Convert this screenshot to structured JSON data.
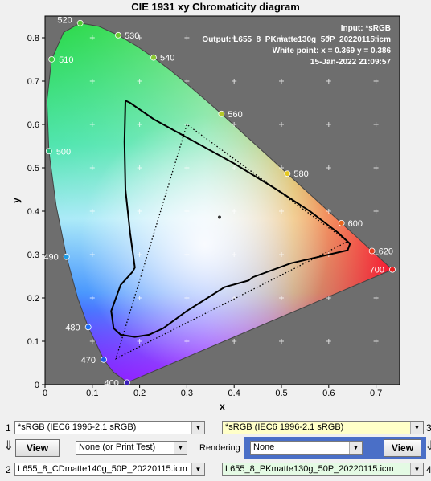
{
  "window": {
    "title": "CIE 1931 xy Chromaticity diagram"
  },
  "chart_data": {
    "type": "scatter",
    "title": "CIE 1931 xy Chromaticity diagram",
    "xlabel": "x",
    "ylabel": "y",
    "xlim": [
      0,
      0.75
    ],
    "ylim": [
      0,
      0.85
    ],
    "xticks": [
      "0",
      "0.1",
      "0.2",
      "0.3",
      "0.4",
      "0.5",
      "0.6",
      "0.7"
    ],
    "yticks": [
      "0",
      "0.1",
      "0.2",
      "0.3",
      "0.4",
      "0.5",
      "0.6",
      "0.7",
      "0.8"
    ],
    "grid": true,
    "annotations": [
      "Input:  *sRGB",
      "Output: L655_8_PKmatte130g_50P_20220115.icm",
      "White point:  x = 0.369  y = 0.386",
      "15-Jan-2022 21:09:57"
    ],
    "spectral_locus": [
      [
        0.1741,
        0.005
      ],
      [
        0.144,
        0.0297
      ],
      [
        0.1241,
        0.0578
      ],
      [
        0.0913,
        0.1327
      ],
      [
        0.0687,
        0.2007
      ],
      [
        0.0454,
        0.295
      ],
      [
        0.0235,
        0.4127
      ],
      [
        0.0082,
        0.5384
      ],
      [
        0.0039,
        0.6548
      ],
      [
        0.0139,
        0.7502
      ],
      [
        0.0389,
        0.812
      ],
      [
        0.0743,
        0.8338
      ],
      [
        0.1142,
        0.8262
      ],
      [
        0.1547,
        0.8059
      ],
      [
        0.1929,
        0.7816
      ],
      [
        0.2296,
        0.7543
      ],
      [
        0.2658,
        0.7243
      ],
      [
        0.3016,
        0.6923
      ],
      [
        0.3373,
        0.6589
      ],
      [
        0.3731,
        0.6245
      ],
      [
        0.4087,
        0.5896
      ],
      [
        0.4441,
        0.5547
      ],
      [
        0.4788,
        0.5202
      ],
      [
        0.5125,
        0.4866
      ],
      [
        0.5448,
        0.4544
      ],
      [
        0.5752,
        0.4242
      ],
      [
        0.6029,
        0.3965
      ],
      [
        0.627,
        0.3725
      ],
      [
        0.6482,
        0.3514
      ],
      [
        0.6658,
        0.334
      ],
      [
        0.6915,
        0.3083
      ],
      [
        0.714,
        0.2859
      ],
      [
        0.7347,
        0.2653
      ]
    ],
    "wavelength_labels": [
      {
        "nm": "400",
        "x": 0.1733,
        "y": 0.0048,
        "color": "#3a1eb8"
      },
      {
        "nm": "470",
        "x": 0.1241,
        "y": 0.0578,
        "color": "#1e5be6"
      },
      {
        "nm": "480",
        "x": 0.0913,
        "y": 0.1327,
        "color": "#1e6ff0"
      },
      {
        "nm": "490",
        "x": 0.0454,
        "y": 0.295,
        "color": "#1e9be6"
      },
      {
        "nm": "500",
        "x": 0.0082,
        "y": 0.5384,
        "color": "#28b478"
      },
      {
        "nm": "510",
        "x": 0.0139,
        "y": 0.7502,
        "color": "#3cc83c"
      },
      {
        "nm": "520",
        "x": 0.0743,
        "y": 0.8338,
        "color": "#50c832"
      },
      {
        "nm": "530",
        "x": 0.1547,
        "y": 0.8059,
        "color": "#6ec832"
      },
      {
        "nm": "540",
        "x": 0.2296,
        "y": 0.7543,
        "color": "#8cc832"
      },
      {
        "nm": "560",
        "x": 0.3731,
        "y": 0.6245,
        "color": "#b4c828"
      },
      {
        "nm": "580",
        "x": 0.5125,
        "y": 0.4866,
        "color": "#e6c81e"
      },
      {
        "nm": "600",
        "x": 0.627,
        "y": 0.3725,
        "color": "#e6641e"
      },
      {
        "nm": "620",
        "x": 0.6915,
        "y": 0.3083,
        "color": "#e63c1e"
      },
      {
        "nm": "700",
        "x": 0.7347,
        "y": 0.2653,
        "color": "#e61e1e"
      }
    ],
    "series": [
      {
        "name": "L655_8_PKmatte130g_50P_20220115.icm",
        "style": "solid",
        "points": [
          [
            0.17,
            0.655
          ],
          [
            0.18,
            0.65
          ],
          [
            0.23,
            0.612
          ],
          [
            0.3,
            0.57
          ],
          [
            0.4,
            0.51
          ],
          [
            0.49,
            0.45
          ],
          [
            0.56,
            0.4
          ],
          [
            0.62,
            0.35
          ],
          [
            0.645,
            0.325
          ],
          [
            0.64,
            0.31
          ],
          [
            0.6,
            0.3
          ],
          [
            0.52,
            0.28
          ],
          [
            0.44,
            0.248
          ],
          [
            0.43,
            0.24
          ],
          [
            0.38,
            0.225
          ],
          [
            0.3,
            0.17
          ],
          [
            0.25,
            0.13
          ],
          [
            0.22,
            0.115
          ],
          [
            0.19,
            0.11
          ],
          [
            0.16,
            0.115
          ],
          [
            0.145,
            0.13
          ],
          [
            0.14,
            0.17
          ],
          [
            0.16,
            0.23
          ],
          [
            0.185,
            0.26
          ],
          [
            0.19,
            0.27
          ],
          [
            0.18,
            0.35
          ],
          [
            0.17,
            0.45
          ],
          [
            0.168,
            0.56
          ],
          [
            0.17,
            0.655
          ]
        ]
      },
      {
        "name": "sRGB",
        "style": "dotted",
        "points": [
          [
            0.64,
            0.33
          ],
          [
            0.3,
            0.6
          ],
          [
            0.15,
            0.06
          ],
          [
            0.64,
            0.33
          ]
        ]
      }
    ],
    "white_point": {
      "x": 0.369,
      "y": 0.386
    }
  },
  "controls": {
    "row1": {
      "index_left": "1",
      "combo_left": "*sRGB   (IEC6 1996-2.1 sRGB)",
      "combo_right": "*sRGB   (IEC6 1996-2.1 sRGB)",
      "index_right": "3"
    },
    "middle": {
      "view_left": "View",
      "print_test": "None (or Print Test)",
      "rendering_label": "Rendering",
      "rendering_value": "None",
      "view_right": "View"
    },
    "row2": {
      "index_left": "2",
      "combo_left": "L655_8_CDmatte140g_50P_20220115.icm",
      "combo_right": "L655_8_PKmatte130g_50P_20220115.icm",
      "index_right": "4"
    }
  },
  "colors": {
    "plot_background": "#6e6e6e",
    "right_bar": "#4a6fc7"
  }
}
